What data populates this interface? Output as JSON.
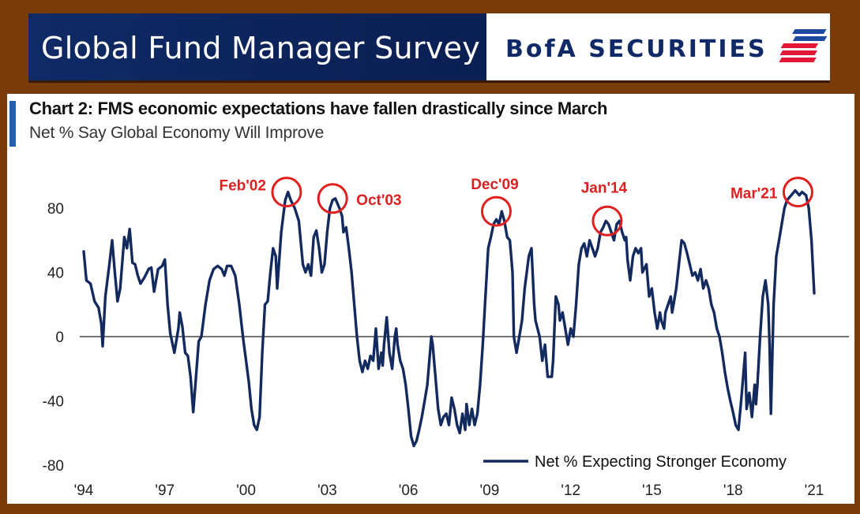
{
  "header": {
    "title": "Global Fund Manager Survey",
    "brand": "BofA SECURITIES"
  },
  "colors": {
    "header_bg": "#0f2a66",
    "frame": "#7a3b0a",
    "line": "#132a5e",
    "annotation": "#e02020",
    "accent": "#1f5fb4"
  },
  "chart_data": {
    "type": "line",
    "title": "Chart 2: FMS economic expectations have fallen drastically since March",
    "subtitle": "Net % Say Global Economy Will Improve",
    "xlabel": "",
    "ylabel": "",
    "xlim": [
      1994,
      2021.3
    ],
    "ylim": [
      -80,
      100
    ],
    "grid": false,
    "zero_line": true,
    "legend_position": "bottom-right",
    "x_ticks": [
      "'94",
      "'97",
      "'00",
      "'03",
      "'06",
      "'09",
      "'12",
      "'15",
      "'18",
      "'21"
    ],
    "y_ticks": [
      80,
      40,
      0,
      -40,
      -80
    ],
    "series": [
      {
        "name": "Net % Expecting Stronger Economy",
        "points": [
          [
            1994.0,
            53
          ],
          [
            1994.1,
            35
          ],
          [
            1994.25,
            33
          ],
          [
            1994.4,
            22
          ],
          [
            1994.55,
            18
          ],
          [
            1994.65,
            8
          ],
          [
            1994.7,
            -6
          ],
          [
            1994.8,
            25
          ],
          [
            1994.95,
            45
          ],
          [
            1995.05,
            60
          ],
          [
            1995.15,
            40
          ],
          [
            1995.25,
            22
          ],
          [
            1995.35,
            30
          ],
          [
            1995.5,
            62
          ],
          [
            1995.6,
            55
          ],
          [
            1995.7,
            67
          ],
          [
            1995.8,
            46
          ],
          [
            1995.9,
            45
          ],
          [
            1996.0,
            38
          ],
          [
            1996.1,
            33
          ],
          [
            1996.25,
            37
          ],
          [
            1996.4,
            42
          ],
          [
            1996.5,
            43
          ],
          [
            1996.6,
            28
          ],
          [
            1996.75,
            42
          ],
          [
            1996.9,
            44
          ],
          [
            1997.0,
            48
          ],
          [
            1997.1,
            20
          ],
          [
            1997.2,
            2
          ],
          [
            1997.35,
            -10
          ],
          [
            1997.5,
            5
          ],
          [
            1997.55,
            15
          ],
          [
            1997.65,
            6
          ],
          [
            1997.75,
            -10
          ],
          [
            1997.85,
            -12
          ],
          [
            1997.95,
            -25
          ],
          [
            1998.05,
            -47
          ],
          [
            1998.15,
            -25
          ],
          [
            1998.25,
            -3
          ],
          [
            1998.35,
            0
          ],
          [
            1998.5,
            20
          ],
          [
            1998.65,
            35
          ],
          [
            1998.8,
            42
          ],
          [
            1998.95,
            44
          ],
          [
            1999.1,
            42
          ],
          [
            1999.2,
            38
          ],
          [
            1999.3,
            44
          ],
          [
            1999.45,
            44
          ],
          [
            1999.6,
            38
          ],
          [
            1999.75,
            20
          ],
          [
            1999.9,
            -2
          ],
          [
            2000.0,
            -15
          ],
          [
            2000.1,
            -28
          ],
          [
            2000.2,
            -45
          ],
          [
            2000.3,
            -55
          ],
          [
            2000.4,
            -58
          ],
          [
            2000.5,
            -50
          ],
          [
            2000.6,
            -10
          ],
          [
            2000.7,
            20
          ],
          [
            2000.8,
            22
          ],
          [
            2000.9,
            40
          ],
          [
            2001.0,
            55
          ],
          [
            2001.1,
            50
          ],
          [
            2001.15,
            30
          ],
          [
            2001.3,
            65
          ],
          [
            2001.45,
            85
          ],
          [
            2001.55,
            90
          ],
          [
            2001.65,
            85
          ],
          [
            2001.8,
            80
          ],
          [
            2001.95,
            72
          ],
          [
            2002.1,
            45
          ],
          [
            2002.2,
            40
          ],
          [
            2002.3,
            45
          ],
          [
            2002.4,
            38
          ],
          [
            2002.5,
            62
          ],
          [
            2002.6,
            66
          ],
          [
            2002.7,
            55
          ],
          [
            2002.8,
            40
          ],
          [
            2002.9,
            45
          ],
          [
            2003.0,
            65
          ],
          [
            2003.1,
            80
          ],
          [
            2003.2,
            85
          ],
          [
            2003.3,
            86
          ],
          [
            2003.45,
            80
          ],
          [
            2003.55,
            75
          ],
          [
            2003.6,
            65
          ],
          [
            2003.7,
            68
          ],
          [
            2003.8,
            55
          ],
          [
            2003.9,
            40
          ],
          [
            2004.0,
            20
          ],
          [
            2004.1,
            0
          ],
          [
            2004.2,
            -15
          ],
          [
            2004.3,
            -22
          ],
          [
            2004.4,
            -15
          ],
          [
            2004.5,
            -20
          ],
          [
            2004.6,
            -12
          ],
          [
            2004.7,
            -15
          ],
          [
            2004.8,
            5
          ],
          [
            2004.9,
            -20
          ],
          [
            2005.0,
            -10
          ],
          [
            2005.05,
            -18
          ],
          [
            2005.1,
            -5
          ],
          [
            2005.2,
            12
          ],
          [
            2005.3,
            -10
          ],
          [
            2005.4,
            -20
          ],
          [
            2005.5,
            0
          ],
          [
            2005.55,
            5
          ],
          [
            2005.6,
            -5
          ],
          [
            2005.7,
            -15
          ],
          [
            2005.8,
            -20
          ],
          [
            2005.9,
            -30
          ],
          [
            2006.0,
            -45
          ],
          [
            2006.1,
            -62
          ],
          [
            2006.2,
            -68
          ],
          [
            2006.3,
            -65
          ],
          [
            2006.4,
            -58
          ],
          [
            2006.5,
            -50
          ],
          [
            2006.6,
            -40
          ],
          [
            2006.7,
            -30
          ],
          [
            2006.8,
            -10
          ],
          [
            2006.85,
            0
          ],
          [
            2006.9,
            -5
          ],
          [
            2007.0,
            -25
          ],
          [
            2007.1,
            -45
          ],
          [
            2007.2,
            -55
          ],
          [
            2007.3,
            -50
          ],
          [
            2007.4,
            -48
          ],
          [
            2007.5,
            -55
          ],
          [
            2007.6,
            -38
          ],
          [
            2007.7,
            -45
          ],
          [
            2007.8,
            -55
          ],
          [
            2007.9,
            -60
          ],
          [
            2008.0,
            -48
          ],
          [
            2008.1,
            -58
          ],
          [
            2008.15,
            -42
          ],
          [
            2008.25,
            -55
          ],
          [
            2008.35,
            -45
          ],
          [
            2008.45,
            -55
          ],
          [
            2008.55,
            -48
          ],
          [
            2008.65,
            -30
          ],
          [
            2008.75,
            -5
          ],
          [
            2008.85,
            25
          ],
          [
            2008.95,
            55
          ],
          [
            2009.05,
            62
          ],
          [
            2009.15,
            70
          ],
          [
            2009.25,
            73
          ],
          [
            2009.35,
            70
          ],
          [
            2009.45,
            78
          ],
          [
            2009.55,
            72
          ],
          [
            2009.65,
            62
          ],
          [
            2009.75,
            60
          ],
          [
            2009.85,
            40
          ],
          [
            2009.9,
            0
          ],
          [
            2010.0,
            -10
          ],
          [
            2010.1,
            0
          ],
          [
            2010.2,
            10
          ],
          [
            2010.3,
            30
          ],
          [
            2010.45,
            50
          ],
          [
            2010.55,
            55
          ],
          [
            2010.65,
            20
          ],
          [
            2010.7,
            10
          ],
          [
            2010.85,
            0
          ],
          [
            2010.95,
            -15
          ],
          [
            2011.05,
            -5
          ],
          [
            2011.15,
            -25
          ],
          [
            2011.3,
            -25
          ],
          [
            2011.35,
            -15
          ],
          [
            2011.45,
            25
          ],
          [
            2011.55,
            20
          ],
          [
            2011.6,
            10
          ],
          [
            2011.7,
            15
          ],
          [
            2011.8,
            5
          ],
          [
            2011.9,
            -5
          ],
          [
            2012.0,
            5
          ],
          [
            2012.1,
            0
          ],
          [
            2012.2,
            20
          ],
          [
            2012.3,
            45
          ],
          [
            2012.4,
            55
          ],
          [
            2012.5,
            58
          ],
          [
            2012.6,
            50
          ],
          [
            2012.7,
            60
          ],
          [
            2012.8,
            55
          ],
          [
            2012.9,
            50
          ],
          [
            2013.0,
            55
          ],
          [
            2013.1,
            65
          ],
          [
            2013.2,
            68
          ],
          [
            2013.3,
            72
          ],
          [
            2013.4,
            70
          ],
          [
            2013.5,
            65
          ],
          [
            2013.6,
            60
          ],
          [
            2013.7,
            70
          ],
          [
            2013.8,
            72
          ],
          [
            2013.9,
            65
          ],
          [
            2014.0,
            60
          ],
          [
            2014.05,
            62
          ],
          [
            2014.1,
            48
          ],
          [
            2014.2,
            35
          ],
          [
            2014.3,
            50
          ],
          [
            2014.4,
            55
          ],
          [
            2014.5,
            52
          ],
          [
            2014.6,
            55
          ],
          [
            2014.65,
            40
          ],
          [
            2014.8,
            45
          ],
          [
            2014.9,
            25
          ],
          [
            2015.0,
            30
          ],
          [
            2015.1,
            15
          ],
          [
            2015.2,
            5
          ],
          [
            2015.3,
            15
          ],
          [
            2015.35,
            10
          ],
          [
            2015.45,
            5
          ],
          [
            2015.5,
            15
          ],
          [
            2015.6,
            20
          ],
          [
            2015.7,
            25
          ],
          [
            2015.75,
            15
          ],
          [
            2015.8,
            20
          ],
          [
            2015.9,
            30
          ],
          [
            2016.0,
            45
          ],
          [
            2016.1,
            60
          ],
          [
            2016.2,
            58
          ],
          [
            2016.3,
            52
          ],
          [
            2016.4,
            45
          ],
          [
            2016.5,
            38
          ],
          [
            2016.6,
            40
          ],
          [
            2016.7,
            35
          ],
          [
            2016.8,
            42
          ],
          [
            2016.9,
            30
          ],
          [
            2017.0,
            35
          ],
          [
            2017.1,
            30
          ],
          [
            2017.2,
            20
          ],
          [
            2017.3,
            15
          ],
          [
            2017.4,
            5
          ],
          [
            2017.5,
            0
          ],
          [
            2017.6,
            -10
          ],
          [
            2017.7,
            -22
          ],
          [
            2017.8,
            -32
          ],
          [
            2017.9,
            -40
          ],
          [
            2018.0,
            -47
          ],
          [
            2018.1,
            -55
          ],
          [
            2018.2,
            -58
          ],
          [
            2018.3,
            -40
          ],
          [
            2018.4,
            -20
          ],
          [
            2018.45,
            -10
          ],
          [
            2018.5,
            -45
          ],
          [
            2018.6,
            -35
          ],
          [
            2018.7,
            -50
          ],
          [
            2018.8,
            -30
          ],
          [
            2018.85,
            -42
          ],
          [
            2018.9,
            -30
          ],
          [
            2019.0,
            0
          ],
          [
            2019.1,
            25
          ],
          [
            2019.2,
            35
          ],
          [
            2019.3,
            20
          ],
          [
            2019.35,
            -5
          ],
          [
            2019.4,
            -48
          ],
          [
            2019.5,
            20
          ],
          [
            2019.6,
            50
          ],
          [
            2019.7,
            60
          ],
          [
            2019.8,
            70
          ],
          [
            2019.9,
            80
          ],
          [
            2020.0,
            85
          ],
          [
            2020.1,
            87
          ],
          [
            2020.2,
            89
          ],
          [
            2020.3,
            91
          ],
          [
            2020.45,
            88
          ],
          [
            2020.55,
            90
          ],
          [
            2020.7,
            88
          ],
          [
            2020.8,
            80
          ],
          [
            2020.9,
            60
          ],
          [
            2021.0,
            27
          ]
        ]
      }
    ],
    "annotations": [
      {
        "label": "Feb'02",
        "x": 2001.5,
        "y": 90
      },
      {
        "label": "Oct'03",
        "x": 2003.2,
        "y": 86
      },
      {
        "label": "Dec'09",
        "x": 2009.25,
        "y": 78
      },
      {
        "label": "Jan'14",
        "x": 2013.35,
        "y": 72
      },
      {
        "label": "Mar'21",
        "x": 2020.4,
        "y": 90
      }
    ]
  }
}
